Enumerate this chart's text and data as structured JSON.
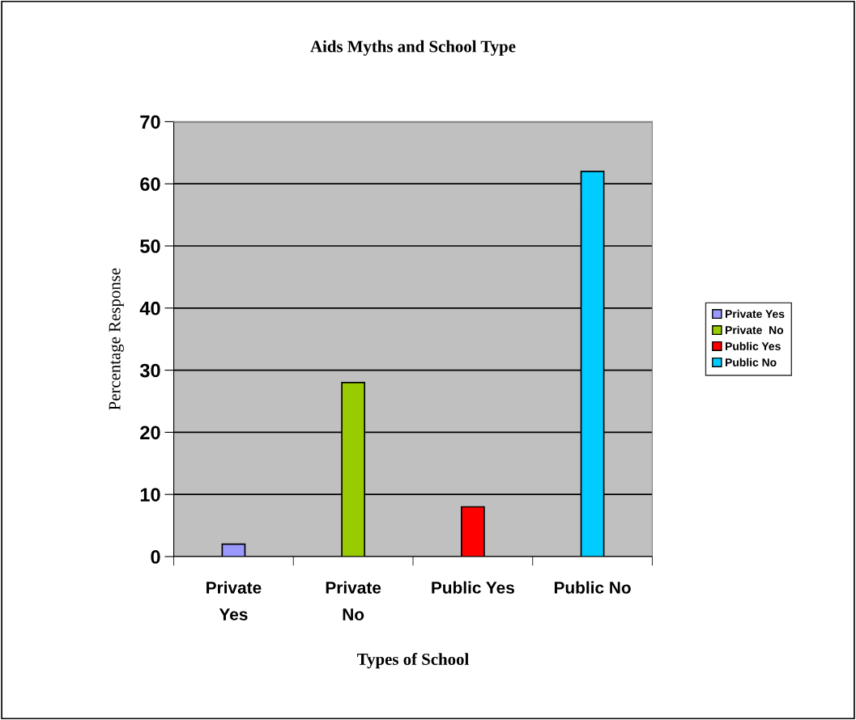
{
  "chart_data": {
    "type": "bar",
    "title": "Aids Myths and School Type",
    "xlabel": "Types of School",
    "ylabel": "Percentage Response",
    "categories": [
      "Private\nYes",
      "Private\nNo",
      "Public Yes",
      "Public No"
    ],
    "series": [
      {
        "name": "Private Yes",
        "color": "#9999ff",
        "values": [
          2,
          null,
          null,
          null
        ]
      },
      {
        "name": "Private  No",
        "color": "#99cc00",
        "values": [
          null,
          28,
          null,
          null
        ]
      },
      {
        "name": "Public Yes",
        "color": "#ff0000",
        "values": [
          null,
          null,
          8,
          null
        ]
      },
      {
        "name": "Public No",
        "color": "#00ccff",
        "values": [
          null,
          null,
          null,
          62
        ]
      }
    ],
    "ylim": [
      0,
      70
    ],
    "yticks": [
      0,
      10,
      20,
      30,
      40,
      50,
      60,
      70
    ],
    "grid": "y",
    "legend": "right"
  }
}
